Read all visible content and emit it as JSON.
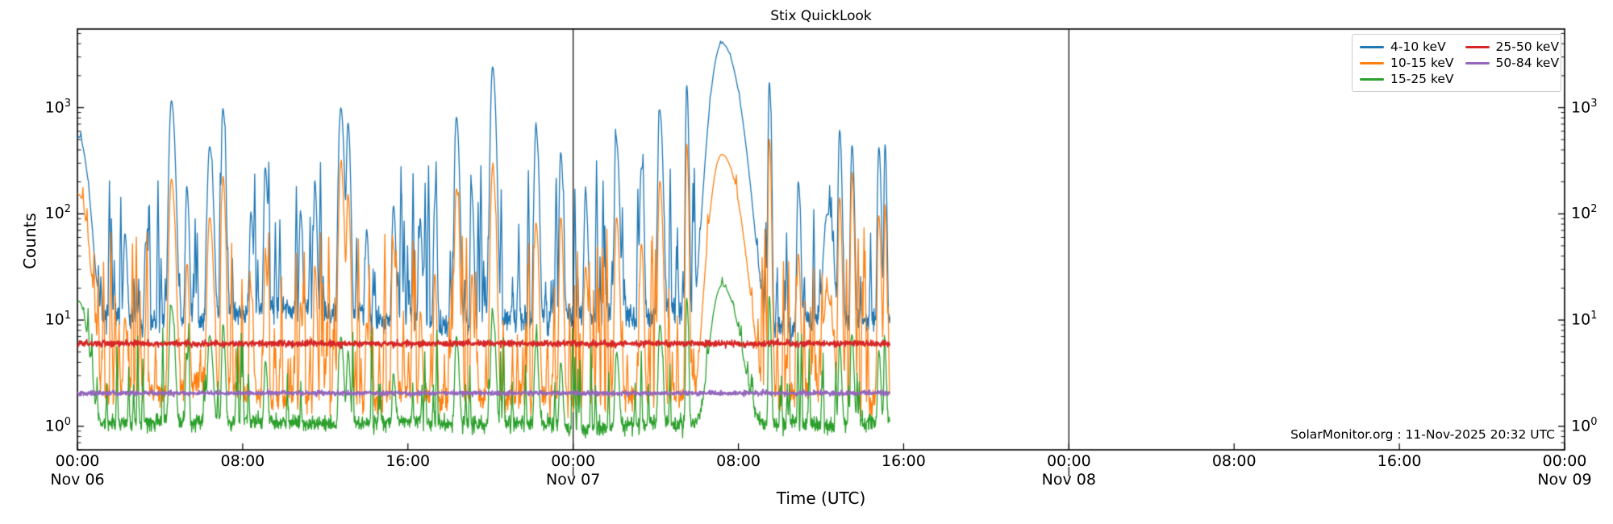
{
  "chart_data": {
    "type": "line",
    "title": "Stix QuickLook",
    "xlabel": "Time (UTC)",
    "ylabel": "Counts",
    "annotation": "SolarMonitor.org : 11-Nov-2025 20:32 UTC",
    "x_axis": {
      "span_hours": 72,
      "major_ticks": [
        {
          "hour": 0,
          "time": "00:00",
          "day": "Nov 06"
        },
        {
          "hour": 8,
          "time": "08:00"
        },
        {
          "hour": 16,
          "time": "16:00"
        },
        {
          "hour": 24,
          "time": "00:00",
          "day": "Nov 07"
        },
        {
          "hour": 32,
          "time": "08:00"
        },
        {
          "hour": 40,
          "time": "16:00"
        },
        {
          "hour": 48,
          "time": "00:00",
          "day": "Nov 08"
        },
        {
          "hour": 56,
          "time": "08:00"
        },
        {
          "hour": 64,
          "time": "16:00"
        },
        {
          "hour": 72,
          "time": "00:00",
          "day": "Nov 09"
        }
      ],
      "day_boundary_lines_hours": [
        24,
        48
      ]
    },
    "y_axis": {
      "scale": "log",
      "limits": [
        0.6,
        5500
      ],
      "tick_exponents": [
        0,
        1,
        2,
        3
      ],
      "label_sides": [
        "left",
        "right"
      ]
    },
    "data_end_hour": 39.33,
    "legend": {
      "columns": 2,
      "position": "upper right"
    },
    "series": [
      {
        "name": "4-10 keV",
        "color": "#1f77b4",
        "baseline_counts": 10.5,
        "noise_sigma": 0.13,
        "wander": 0.9,
        "spike_prob": 0.06,
        "spike_min_mult": 1.4,
        "spike_max_mult": 28,
        "spike_pow": 5
      },
      {
        "name": "10-15 keV",
        "color": "#ff7f0e",
        "baseline_counts": 1.85,
        "noise_sigma": 0.14,
        "wander": 0.7,
        "spike_prob": 0.1,
        "spike_min_mult": 1.5,
        "spike_max_mult": 38,
        "spike_pow": 4
      },
      {
        "name": "15-25 keV",
        "color": "#2ca02c",
        "baseline_counts": 1.08,
        "noise_sigma": 0.085,
        "wander": 0.3,
        "spike_prob": 0.04,
        "spike_min_mult": 1.3,
        "spike_max_mult": 6,
        "spike_pow": 4
      },
      {
        "name": "25-50 keV",
        "color": "#d62728",
        "baseline_counts": 6.0,
        "noise_sigma": 0.032,
        "wander": 0,
        "spike_prob": 0,
        "spike_min_mult": 0,
        "spike_max_mult": 0,
        "spike_pow": 1
      },
      {
        "name": "50-84 keV",
        "color": "#9467bd",
        "baseline_counts": 2.05,
        "noise_sigma": 0.024,
        "wander": 0,
        "spike_prob": 0,
        "spike_min_mult": 0,
        "spike_max_mult": 0,
        "spike_pow": 1
      }
    ],
    "events_peak_order": [
      "4-10 keV",
      "10-15 keV",
      "15-25 keV"
    ],
    "events": [
      {
        "t_hours": 0.05,
        "width_hours": 0.5,
        "peaks": [
          520,
          150,
          14
        ]
      },
      {
        "t_hours": 2.3,
        "width_hours": 0.12,
        "peaks": [
          55,
          8,
          0
        ]
      },
      {
        "t_hours": 3.3,
        "width_hours": 0.1,
        "peaks": [
          45,
          6,
          0
        ]
      },
      {
        "t_hours": 4.55,
        "width_hours": 0.18,
        "peaks": [
          1150,
          210,
          12
        ]
      },
      {
        "t_hours": 5.3,
        "width_hours": 0.12,
        "peaks": [
          160,
          30,
          3
        ]
      },
      {
        "t_hours": 6.4,
        "width_hours": 0.18,
        "peaks": [
          420,
          90,
          6
        ]
      },
      {
        "t_hours": 7.05,
        "width_hours": 0.12,
        "peaks": [
          950,
          220,
          8
        ]
      },
      {
        "t_hours": 8.4,
        "width_hours": 0.12,
        "peaks": [
          90,
          15,
          0
        ]
      },
      {
        "t_hours": 9.1,
        "width_hours": 0.12,
        "peaks": [
          250,
          35,
          3
        ]
      },
      {
        "t_hours": 10.8,
        "width_hours": 0.1,
        "peaks": [
          90,
          12,
          0
        ]
      },
      {
        "t_hours": 11.5,
        "width_hours": 0.1,
        "peaks": [
          180,
          30,
          0
        ]
      },
      {
        "t_hours": 12.75,
        "width_hours": 0.16,
        "peaks": [
          980,
          290,
          6
        ]
      },
      {
        "t_hours": 13.1,
        "width_hours": 0.12,
        "peaks": [
          700,
          150,
          4
        ]
      },
      {
        "t_hours": 14.0,
        "width_hours": 0.1,
        "peaks": [
          60,
          8,
          0
        ]
      },
      {
        "t_hours": 15.3,
        "width_hours": 0.12,
        "peaks": [
          110,
          45,
          2
        ]
      },
      {
        "t_hours": 16.6,
        "width_hours": 0.1,
        "peaks": [
          70,
          10,
          0
        ]
      },
      {
        "t_hours": 17.3,
        "width_hours": 0.1,
        "peaks": [
          120,
          25,
          0
        ]
      },
      {
        "t_hours": 18.35,
        "width_hours": 0.14,
        "peaks": [
          800,
          170,
          6
        ]
      },
      {
        "t_hours": 19.1,
        "width_hours": 0.1,
        "peaks": [
          140,
          25,
          0
        ]
      },
      {
        "t_hours": 20.1,
        "width_hours": 0.16,
        "peaks": [
          2400,
          260,
          10
        ]
      },
      {
        "t_hours": 22.2,
        "width_hours": 0.14,
        "peaks": [
          620,
          80,
          5
        ]
      },
      {
        "t_hours": 23.4,
        "width_hours": 0.12,
        "peaks": [
          360,
          90,
          3
        ]
      },
      {
        "t_hours": 24.6,
        "width_hours": 0.12,
        "peaks": [
          140,
          30,
          0
        ]
      },
      {
        "t_hours": 26.1,
        "width_hours": 0.14,
        "peaks": [
          460,
          90,
          4
        ]
      },
      {
        "t_hours": 27.3,
        "width_hours": 0.12,
        "peaks": [
          260,
          50,
          0
        ]
      },
      {
        "t_hours": 28.2,
        "width_hours": 0.14,
        "peaks": [
          900,
          200,
          8
        ]
      },
      {
        "t_hours": 29.5,
        "width_hours": 0.09,
        "peaks": [
          1600,
          450,
          15
        ]
      },
      {
        "t_hours": 31.2,
        "width_hours": 0.85,
        "peaks": [
          4000,
          360,
          20
        ]
      },
      {
        "t_hours": 33.5,
        "width_hours": 0.09,
        "peaks": [
          1600,
          500,
          15
        ]
      },
      {
        "t_hours": 34.9,
        "width_hours": 0.11,
        "peaks": [
          190,
          40,
          0
        ]
      },
      {
        "t_hours": 36.3,
        "width_hours": 0.3,
        "peaks": [
          90,
          15,
          0
        ]
      },
      {
        "t_hours": 36.9,
        "width_hours": 0.11,
        "peaks": [
          600,
          140,
          5
        ]
      },
      {
        "t_hours": 37.5,
        "width_hours": 0.11,
        "peaks": [
          430,
          220,
          6
        ]
      },
      {
        "t_hours": 38.8,
        "width_hours": 0.11,
        "peaks": [
          410,
          90,
          4
        ]
      },
      {
        "t_hours": 39.1,
        "width_hours": 0.08,
        "peaks": [
          430,
          120,
          4
        ]
      }
    ]
  }
}
